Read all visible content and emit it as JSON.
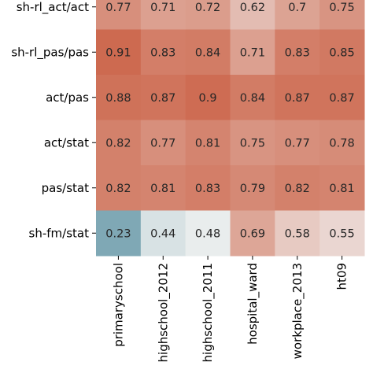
{
  "chart_data": {
    "type": "heatmap",
    "rows": [
      "sh-rl_act/act",
      "sh-rl_pas/pas",
      "act/pas",
      "act/stat",
      "pas/stat",
      "sh-fm/stat"
    ],
    "columns": [
      "primaryschool",
      "highschool_2012",
      "highschool_2011",
      "hospital_ward",
      "workplace_2013",
      "ht09"
    ],
    "values": [
      [
        0.77,
        0.71,
        0.72,
        0.62,
        0.7,
        0.75
      ],
      [
        0.91,
        0.83,
        0.84,
        0.71,
        0.83,
        0.85
      ],
      [
        0.88,
        0.87,
        0.9,
        0.84,
        0.87,
        0.87
      ],
      [
        0.82,
        0.77,
        0.81,
        0.75,
        0.77,
        0.78
      ],
      [
        0.82,
        0.81,
        0.83,
        0.79,
        0.82,
        0.81
      ],
      [
        0.23,
        0.44,
        0.48,
        0.69,
        0.58,
        0.55
      ]
    ],
    "colormap": {
      "low_color": "#7fa8b5",
      "mid_color": "#f2f2f2",
      "high_color": "#cd6a50",
      "center": 0.5
    },
    "legend": "none"
  }
}
